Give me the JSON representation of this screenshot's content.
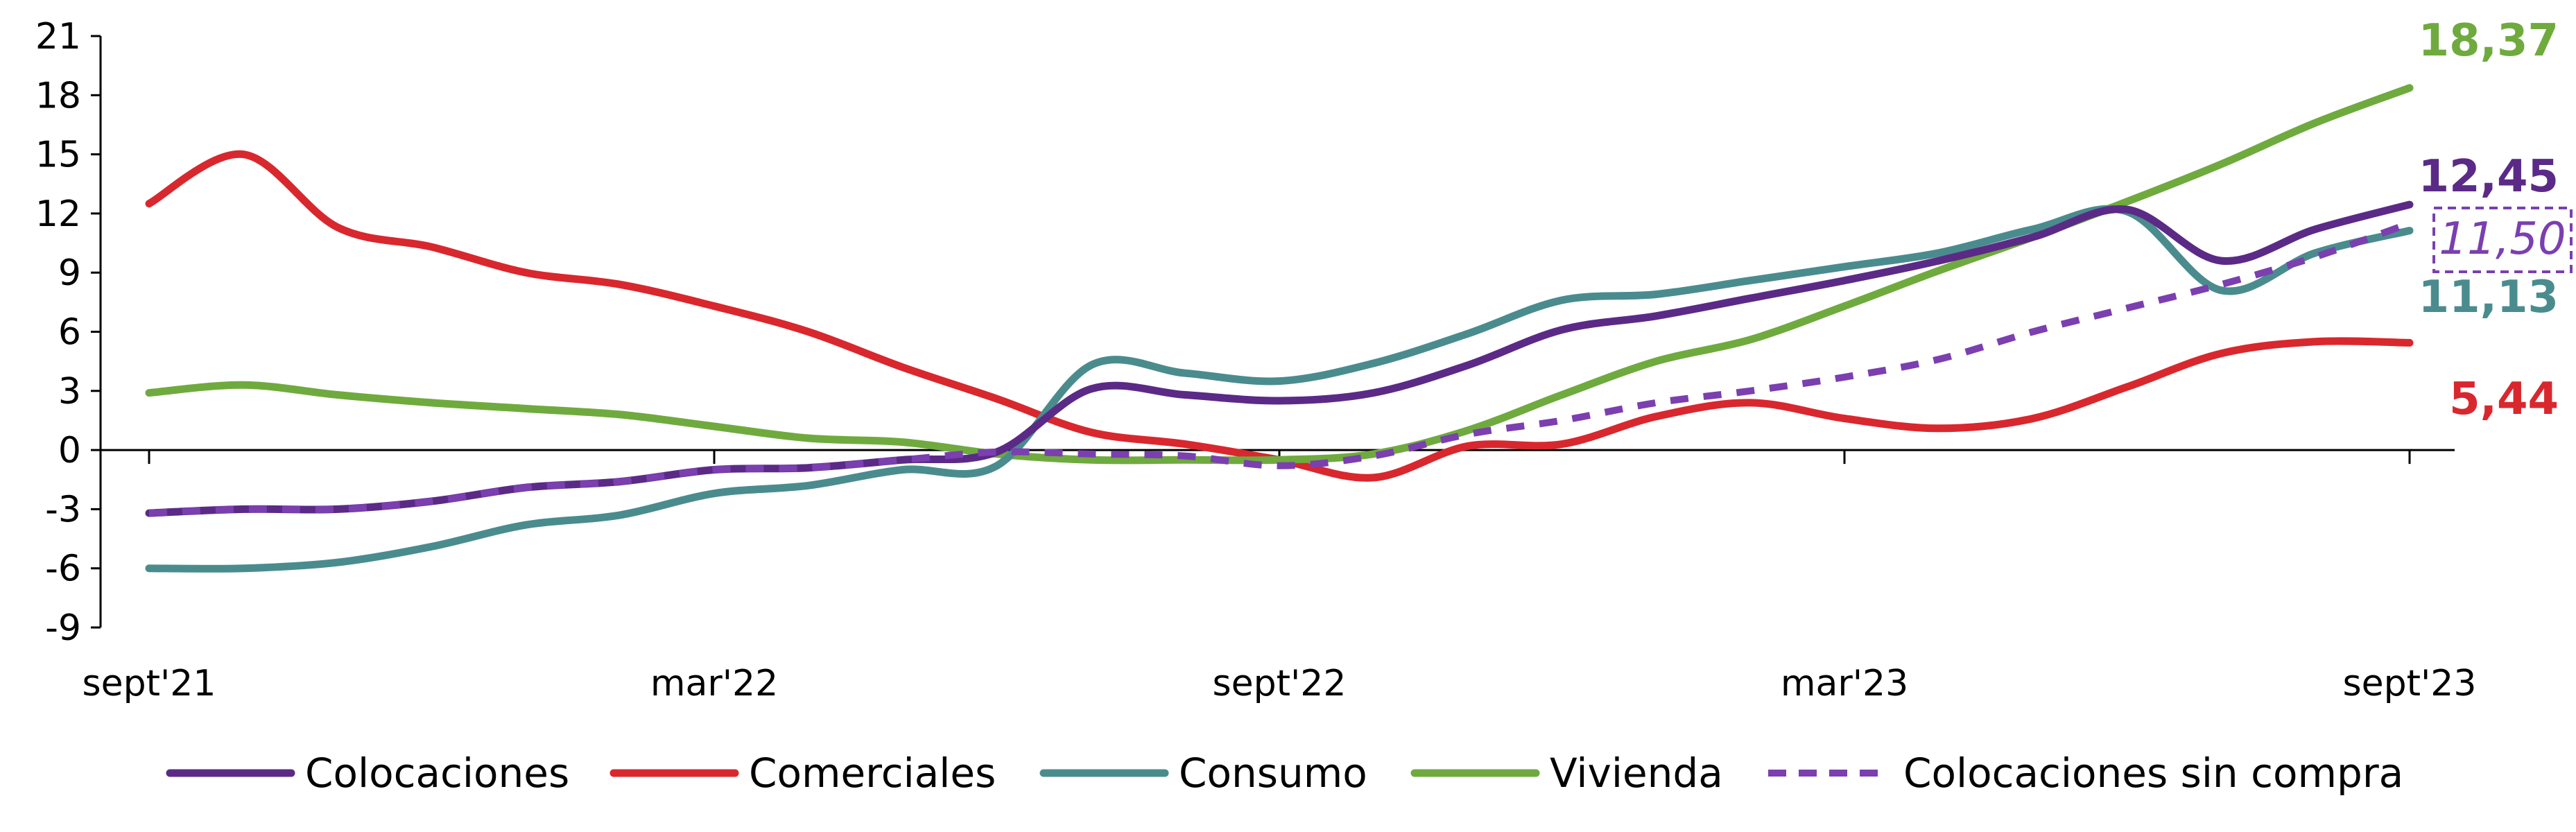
{
  "chart_data": {
    "type": "line",
    "title": "",
    "xlabel": "",
    "ylabel": "",
    "ylim": [
      -9,
      21
    ],
    "y_ticks": [
      "-9",
      "-6",
      "-3",
      "0",
      "3",
      "6",
      "9",
      "12",
      "15",
      "18",
      "21"
    ],
    "x_ticks": [
      "sept'21",
      "mar'22",
      "sept'22",
      "mar'23",
      "sept'23"
    ],
    "x": [
      "sept'21",
      "oct'21",
      "nov'21",
      "dic'21",
      "ene'22",
      "feb'22",
      "mar'22",
      "abr'22",
      "may'22",
      "jun'22",
      "jul'22",
      "ago'22",
      "sept'22",
      "oct'22",
      "nov'22",
      "dic'22",
      "ene'23",
      "feb'23",
      "mar'23",
      "abr'23",
      "may'23",
      "jun'23",
      "jul'23",
      "ago'23",
      "sept'23"
    ],
    "grid": false,
    "legend_position": "bottom",
    "series": [
      {
        "name": "Colocaciones",
        "color": "#5B2A86",
        "style": "solid",
        "values": [
          -3.2,
          -3.0,
          -3.0,
          -2.6,
          -1.9,
          -1.6,
          -1.0,
          -0.9,
          -0.5,
          -0.1,
          3.1,
          2.8,
          2.5,
          2.9,
          4.3,
          6.1,
          6.8,
          7.7,
          8.6,
          9.6,
          10.8,
          12.2,
          9.6,
          11.2,
          12.45
        ],
        "end_label": "12,45"
      },
      {
        "name": "Comerciales",
        "color": "#D9272E",
        "style": "solid",
        "values": [
          12.5,
          15.0,
          11.3,
          10.3,
          9.0,
          8.4,
          7.3,
          6.0,
          4.2,
          2.6,
          0.9,
          0.3,
          -0.5,
          -1.4,
          0.2,
          0.3,
          1.7,
          2.4,
          1.6,
          1.1,
          1.6,
          3.2,
          4.9,
          5.5,
          5.44
        ],
        "end_label": "5,44"
      },
      {
        "name": "Consumo",
        "color": "#4A8C8E",
        "style": "solid",
        "values": [
          -6.0,
          -6.0,
          -5.7,
          -4.9,
          -3.8,
          -3.3,
          -2.2,
          -1.8,
          -1.0,
          -0.8,
          4.3,
          3.9,
          3.5,
          4.4,
          5.9,
          7.6,
          7.9,
          8.6,
          9.3,
          10.0,
          11.2,
          12.1,
          8.1,
          10.0,
          11.13
        ],
        "end_label": "11,13"
      },
      {
        "name": "Vivienda",
        "color": "#6FAA3E",
        "style": "solid",
        "values": [
          2.9,
          3.3,
          2.8,
          2.4,
          2.1,
          1.8,
          1.2,
          0.6,
          0.4,
          -0.2,
          -0.5,
          -0.5,
          -0.5,
          -0.2,
          1.0,
          2.8,
          4.5,
          5.6,
          7.3,
          9.1,
          10.8,
          12.6,
          14.5,
          16.6,
          18.37
        ],
        "end_label": "18,37"
      },
      {
        "name": "Colocaciones sin compra",
        "color": "#7B3FB0",
        "style": "dashed",
        "values": [
          -3.2,
          -3.0,
          -3.0,
          -2.6,
          -1.9,
          -1.6,
          -1.0,
          -0.9,
          -0.5,
          -0.1,
          -0.2,
          -0.3,
          -0.8,
          -0.3,
          0.8,
          1.5,
          2.4,
          3.0,
          3.7,
          4.6,
          6.0,
          7.2,
          8.4,
          9.8,
          11.5
        ],
        "end_label": "11,50"
      }
    ]
  }
}
